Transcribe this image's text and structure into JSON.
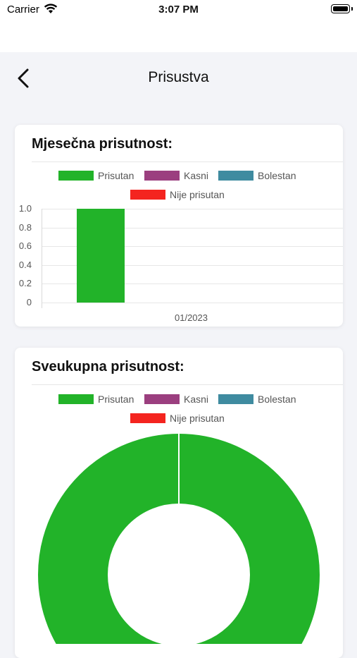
{
  "status_bar": {
    "carrier": "Carrier",
    "time": "3:07 PM"
  },
  "nav": {
    "title": "Prisustva",
    "back_icon": "chevron-left-icon"
  },
  "monthly_card": {
    "title": "Mjesečna prisutnost:"
  },
  "total_card": {
    "title": "Sveukupna prisutnost:"
  },
  "legend": [
    {
      "label": "Prisutan",
      "color": "#22b329"
    },
    {
      "label": "Kasni",
      "color": "#9b3f7f"
    },
    {
      "label": "Bolestan",
      "color": "#3f8ba0"
    },
    {
      "label": "Nije prisutan",
      "color": "#f4241f"
    }
  ],
  "chart_data": [
    {
      "type": "bar",
      "categories": [
        "01/2023"
      ],
      "series": [
        {
          "name": "Prisutan",
          "values": [
            1.0
          ]
        },
        {
          "name": "Kasni",
          "values": [
            0
          ]
        },
        {
          "name": "Bolestan",
          "values": [
            0
          ]
        },
        {
          "name": "Nije prisutan",
          "values": [
            0
          ]
        }
      ],
      "y_ticks": [
        "1.0",
        "0.8",
        "0.6",
        "0.4",
        "0.2",
        "0"
      ],
      "ylim": [
        0,
        1.0
      ],
      "title": "Mjesečna prisutnost:",
      "legend_position": "top",
      "grid": true
    },
    {
      "type": "pie",
      "style": "doughnut",
      "labels": [
        "Prisutan",
        "Kasni",
        "Bolestan",
        "Nije prisutan"
      ],
      "values": [
        1,
        0,
        0,
        0
      ],
      "title": "Sveukupna prisutnost:",
      "legend_position": "top"
    }
  ]
}
